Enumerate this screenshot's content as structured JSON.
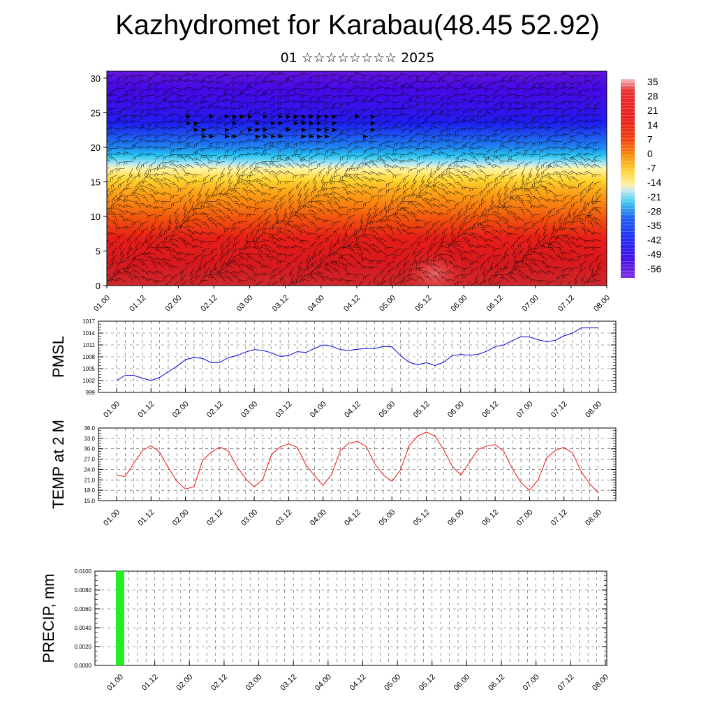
{
  "title": "Kazhydromet for Karabau(48.45 52.92)",
  "subtitle": "01 ☆☆☆☆☆☆☆☆ 2025",
  "chart_data": [
    {
      "type": "heatmap",
      "name": "temperature-wind-cross-section",
      "x_ticks": [
        "01.00",
        "01.12",
        "02.00",
        "02.12",
        "03.00",
        "03.12",
        "04.00",
        "04.12",
        "05.00",
        "05.12",
        "06.00",
        "06.12",
        "07.00",
        "07.12",
        "08.00"
      ],
      "y_ticks": [
        "0",
        "5",
        "10",
        "15",
        "20",
        "25",
        "30"
      ],
      "ylim": [
        0,
        31
      ],
      "colorbar_labels": [
        "35",
        "28",
        "21",
        "14",
        "7",
        "0",
        "-7",
        "-14",
        "-21",
        "-28",
        "-35",
        "-42",
        "-49",
        "-56"
      ],
      "colorbar_range": [
        -63,
        42
      ],
      "temperature_profile": {
        "height": [
          0,
          5,
          10,
          14,
          17,
          20,
          25,
          31
        ],
        "value": [
          35,
          20,
          7,
          -3,
          -14,
          -32,
          -50,
          -60
        ]
      },
      "wind_barbs": true
    },
    {
      "type": "line",
      "name": "pmsl",
      "ylabel": "PMSL",
      "color": "#0000dd",
      "ylim": [
        999,
        1017
      ],
      "y_ticks": [
        "999",
        "1002",
        "1005",
        "1008",
        "1011",
        "1014",
        "1017"
      ],
      "x_ticks": [
        "01.00",
        "01.12",
        "02.00",
        "02.12",
        "03.00",
        "03.12",
        "04.00",
        "04.12",
        "05.00",
        "05.12",
        "06.00",
        "06.12",
        "07.00",
        "07.12",
        "08.00"
      ],
      "x": [
        0,
        0.5,
        1,
        1.5,
        2,
        2.5,
        3,
        3.5,
        4,
        4.5,
        5,
        5.5,
        6,
        6.5,
        7,
        7.5,
        8,
        8.5,
        9,
        9.5,
        10,
        10.5,
        11,
        11.5,
        12,
        12.5,
        13,
        13.5,
        14,
        14.5,
        15,
        15.5,
        16,
        16.5,
        17,
        17.5,
        18,
        18.5,
        19,
        19.5,
        20,
        20.5,
        21,
        21.5,
        22,
        22.5,
        23,
        23.5,
        24,
        24.5,
        25,
        25.5,
        26,
        26.5,
        27,
        27.5,
        28
      ],
      "values": [
        1002.0,
        1003.3,
        1003.3,
        1002.6,
        1002.0,
        1002.8,
        1004.2,
        1005.6,
        1007.3,
        1007.8,
        1007.6,
        1006.5,
        1006.6,
        1007.8,
        1008.3,
        1009.2,
        1009.8,
        1009.6,
        1009.0,
        1008.1,
        1008.3,
        1009.3,
        1009.1,
        1010.1,
        1011.0,
        1010.7,
        1009.8,
        1009.6,
        1009.9,
        1010.1,
        1010.1,
        1010.6,
        1010.5,
        1008.3,
        1006.6,
        1006.0,
        1006.5,
        1005.8,
        1006.6,
        1008.3,
        1008.6,
        1008.4,
        1008.6,
        1009.4,
        1010.6,
        1011.0,
        1012.1,
        1013.1,
        1013.0,
        1012.3,
        1011.8,
        1012.2,
        1013.3,
        1014.0,
        1015.3,
        1015.3,
        1015.3
      ]
    },
    {
      "type": "line",
      "name": "temp-2m",
      "ylabel": "TEMP at 2 M",
      "color": "#ee1111",
      "ylim": [
        15,
        36
      ],
      "y_ticks": [
        "15.0",
        "18.0",
        "21.0",
        "24.0",
        "27.0",
        "30.0",
        "33.0",
        "36.0"
      ],
      "x_ticks": [
        "01.00",
        "01.12",
        "02.00",
        "02.12",
        "03.00",
        "03.12",
        "04.00",
        "04.12",
        "05.00",
        "05.12",
        "06.00",
        "06.12",
        "07.00",
        "07.12",
        "08.00"
      ],
      "x": [
        0,
        0.5,
        1,
        1.5,
        2,
        2.5,
        3,
        3.5,
        4,
        4.5,
        5,
        5.5,
        6,
        6.5,
        7,
        7.5,
        8,
        8.5,
        9,
        9.5,
        10,
        10.5,
        11,
        11.5,
        12,
        12.5,
        13,
        13.5,
        14,
        14.5,
        15,
        15.5,
        16,
        16.5,
        17,
        17.5,
        18,
        18.5,
        19,
        19.5,
        20,
        20.5,
        21,
        21.5,
        22,
        22.5,
        23,
        23.5,
        24,
        24.5,
        25,
        25.5,
        26,
        26.5,
        27,
        27.5,
        28
      ],
      "values": [
        22.3,
        22.0,
        25.8,
        29.5,
        30.9,
        29.0,
        24.6,
        20.6,
        18.4,
        19.0,
        26.7,
        29.0,
        30.5,
        29.3,
        24.8,
        21.3,
        19.0,
        21.2,
        28.3,
        30.5,
        31.4,
        30.4,
        25.3,
        22.2,
        19.4,
        22.6,
        29.5,
        31.6,
        32.1,
        30.7,
        25.7,
        22.4,
        20.6,
        23.9,
        30.9,
        33.7,
        34.8,
        33.7,
        29.8,
        25.0,
        22.4,
        26.0,
        29.8,
        30.8,
        31.2,
        29.3,
        24.2,
        20.2,
        18.0,
        21.1,
        27.4,
        29.5,
        30.4,
        28.8,
        23.4,
        19.8,
        17.3
      ]
    },
    {
      "type": "bar",
      "name": "precip",
      "ylabel": "PRECIP, mm",
      "color": "#22ee22",
      "ylim": [
        0,
        0.01
      ],
      "y_ticks": [
        "0.0000",
        "0.0020",
        "0.0040",
        "0.0060",
        "0.0080",
        "0.0100"
      ],
      "x_ticks": [
        "01.00",
        "01.12",
        "02.00",
        "02.12",
        "03.00",
        "03.12",
        "04.00",
        "04.12",
        "05.00",
        "05.12",
        "06.00",
        "06.12",
        "07.00",
        "07.12",
        "08.00"
      ],
      "bars": [
        {
          "x": 0,
          "value": 0.01
        }
      ]
    }
  ]
}
